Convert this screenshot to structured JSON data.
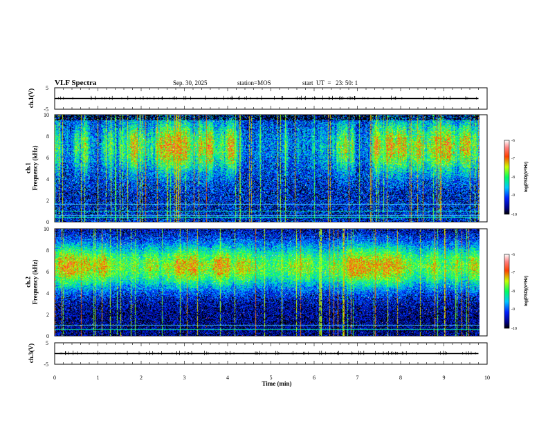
{
  "header": {
    "title": "VLF Spectra",
    "date": "Sep. 30, 2025",
    "station": "station=MOS",
    "start": "start  UT  =   23: 50: 1"
  },
  "chart_data": [
    {
      "type": "line",
      "panel": "ch1-voltage",
      "ylabel": "ch.1(V)",
      "ylim": [
        -5,
        5
      ],
      "y_ticks": [
        "5",
        "-5"
      ],
      "x": [
        0,
        9.8
      ],
      "values": [
        0,
        0
      ]
    },
    {
      "type": "heatmap",
      "panel": "ch1-spectrogram",
      "ylabel": "ch.1\nFrequency (kHz)",
      "ylim": [
        0,
        10
      ],
      "y_ticks": [
        "0",
        "2",
        "4",
        "6",
        "8",
        "10"
      ],
      "xlim": [
        0,
        10
      ],
      "data_xmax": 9.8,
      "band_center_khz": 7,
      "hline_khz": [
        0.4,
        0.6,
        1.0,
        1.6
      ],
      "colorbar": {
        "label": "log(PSD)(V²/Hz)",
        "range": [
          -10,
          -6
        ],
        "ticks": [
          "-6",
          "-7",
          "-8",
          "-9",
          "-10"
        ]
      }
    },
    {
      "type": "heatmap",
      "panel": "ch2-spectrogram",
      "ylabel": "ch.2\nFrequency (kHz)",
      "ylim": [
        0,
        10
      ],
      "y_ticks": [
        "0",
        "2",
        "4",
        "6",
        "8",
        "10"
      ],
      "xlim": [
        0,
        10
      ],
      "data_xmax": 9.8,
      "band_center_khz": 6.5,
      "hline_khz": [
        0.6,
        1.0
      ],
      "colorbar": {
        "label": "log(PSD)(V²/Hz)",
        "range": [
          -10,
          -6
        ],
        "ticks": [
          "-6",
          "-7",
          "-8",
          "-9",
          "-10"
        ]
      }
    },
    {
      "type": "line",
      "panel": "ch3-voltage",
      "ylabel": "ch.3(V)",
      "ylim": [
        -5,
        5
      ],
      "y_ticks": [
        "5",
        "-5"
      ],
      "x": [
        0,
        9.8
      ],
      "values": [
        0,
        0
      ]
    }
  ],
  "x_axis": {
    "label": "Time (min)",
    "range": [
      0,
      10
    ],
    "ticks": [
      "0",
      "1",
      "2",
      "3",
      "4",
      "5",
      "6",
      "7",
      "8",
      "9",
      "10"
    ]
  }
}
